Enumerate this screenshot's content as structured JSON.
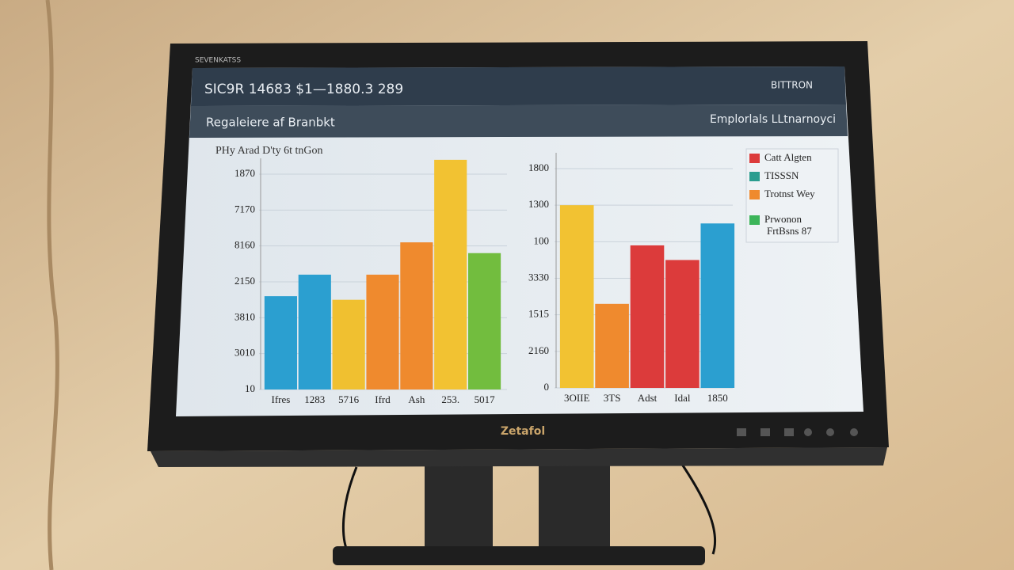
{
  "bezel": {
    "label": "SEVENKATSS",
    "brand": "Zetafol"
  },
  "screen": {
    "header_title": "SIC9R  14683 $1—1880.3 289",
    "header_right": "BITTRON",
    "subheader_left": "Regaleiere af Branbkt",
    "subheader_right": "Emplorlals LLtnarnoyci"
  },
  "chart_data": [
    {
      "type": "bar",
      "title": "PHy Arad D'ty 6t tnGon",
      "categories": [
        "Ifres",
        "1283",
        "5716",
        "Ifrd",
        "Ash",
        "253.",
        "5017"
      ],
      "values": [
        2.6,
        3.2,
        2.5,
        3.2,
        4.1,
        6.4,
        3.8
      ],
      "colors": [
        "#2b9fd0",
        "#2b9fd0",
        "#f0c030",
        "#ef8a2e",
        "#ef8a2e",
        "#f2c232",
        "#72bd3e"
      ],
      "ylim": [
        0,
        6.5
      ],
      "yticks": [
        {
          "value": 0,
          "label": "10"
        },
        {
          "value": 1,
          "label": "3010"
        },
        {
          "value": 2,
          "label": "3810"
        },
        {
          "value": 3,
          "label": "2150"
        },
        {
          "value": 4,
          "label": "8160"
        },
        {
          "value": 5,
          "label": "7170"
        },
        {
          "value": 6,
          "label": "1870"
        }
      ],
      "grid": true
    },
    {
      "type": "bar",
      "categories": [
        "3OIIE",
        "3TS",
        "Adst",
        "Idal",
        "1850"
      ],
      "values": [
        5.0,
        2.3,
        3.9,
        3.5,
        4.5
      ],
      "colors": [
        "#f2c232",
        "#ef8a2e",
        "#dc3b3b",
        "#dc3b3b",
        "#2b9fd0"
      ],
      "ylim": [
        0,
        6.5
      ],
      "yticks": [
        {
          "value": 0,
          "label": "0"
        },
        {
          "value": 1,
          "label": "2160"
        },
        {
          "value": 2,
          "label": "1515"
        },
        {
          "value": 3,
          "label": "3330"
        },
        {
          "value": 4,
          "label": "100"
        },
        {
          "value": 5,
          "label": "1300"
        },
        {
          "value": 6,
          "label": "1800"
        }
      ],
      "grid": true,
      "legend": {
        "position": "top-right",
        "entries": [
          {
            "name": "Catt Algten",
            "color": "#dc3b3b"
          },
          {
            "name": "TISSSN",
            "color": "#2a9d8f"
          },
          {
            "name": "Trotnst Wey",
            "color": "#ef8a2e"
          },
          {
            "name": "Prwonon",
            "subname": "FrtBsns 87",
            "color": "#3cb55a"
          }
        ]
      }
    }
  ]
}
